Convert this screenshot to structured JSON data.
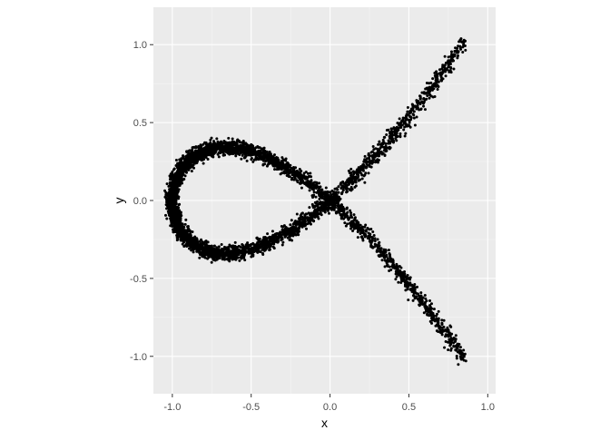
{
  "chart_data": {
    "type": "scatter",
    "title": "",
    "xlabel": "x",
    "ylabel": "y",
    "xlim": [
      -1.12,
      1.05
    ],
    "ylim": [
      -1.24,
      1.24
    ],
    "x_ticks": [
      -1.0,
      -0.5,
      0.0,
      0.5,
      1.0
    ],
    "x_tick_labels": [
      "-1.0",
      "-0.5",
      "0.0",
      "0.5",
      "1.0"
    ],
    "y_ticks": [
      -1.0,
      -0.5,
      0.0,
      0.5,
      1.0
    ],
    "y_tick_labels": [
      "-1.0",
      "-0.5",
      "0.0",
      "0.5",
      "1.0"
    ],
    "grid": true,
    "legend": "none",
    "colors": {
      "panel_background": "#EBEBEB",
      "grid_major": "#FFFFFF",
      "grid_minor": "#F5F5F5",
      "point": "#000000",
      "tick_label": "#4D4D4D",
      "axis_title": "#000000"
    },
    "curve_description_points": [
      {
        "x": 0.85,
        "y": -1.14
      },
      {
        "x": 0.7,
        "y": -0.87
      },
      {
        "x": 0.55,
        "y": -0.61
      },
      {
        "x": 0.4,
        "y": -0.39
      },
      {
        "x": 0.25,
        "y": -0.2
      },
      {
        "x": 0.1,
        "y": -0.07
      },
      {
        "x": 0.0,
        "y": 0.0
      },
      {
        "x": -0.15,
        "y": 0.1
      },
      {
        "x": -0.35,
        "y": 0.26
      },
      {
        "x": -0.55,
        "y": 0.37
      },
      {
        "x": -0.7,
        "y": 0.39
      },
      {
        "x": -0.85,
        "y": 0.33
      },
      {
        "x": -0.97,
        "y": 0.16
      },
      {
        "x": -1.0,
        "y": 0.0
      },
      {
        "x": -0.97,
        "y": -0.16
      },
      {
        "x": -0.85,
        "y": -0.33
      },
      {
        "x": -0.7,
        "y": -0.39
      },
      {
        "x": -0.55,
        "y": -0.37
      },
      {
        "x": -0.35,
        "y": -0.26
      },
      {
        "x": -0.15,
        "y": -0.1
      },
      {
        "x": 0.0,
        "y": 0.0
      },
      {
        "x": 0.1,
        "y": 0.07
      },
      {
        "x": 0.25,
        "y": 0.2
      },
      {
        "x": 0.4,
        "y": 0.39
      },
      {
        "x": 0.55,
        "y": 0.61
      },
      {
        "x": 0.7,
        "y": 0.87
      },
      {
        "x": 0.85,
        "y": 1.14
      }
    ],
    "points_note_t_range": [
      -1.0,
      1.0
    ],
    "approx_point_count": 5000
  }
}
